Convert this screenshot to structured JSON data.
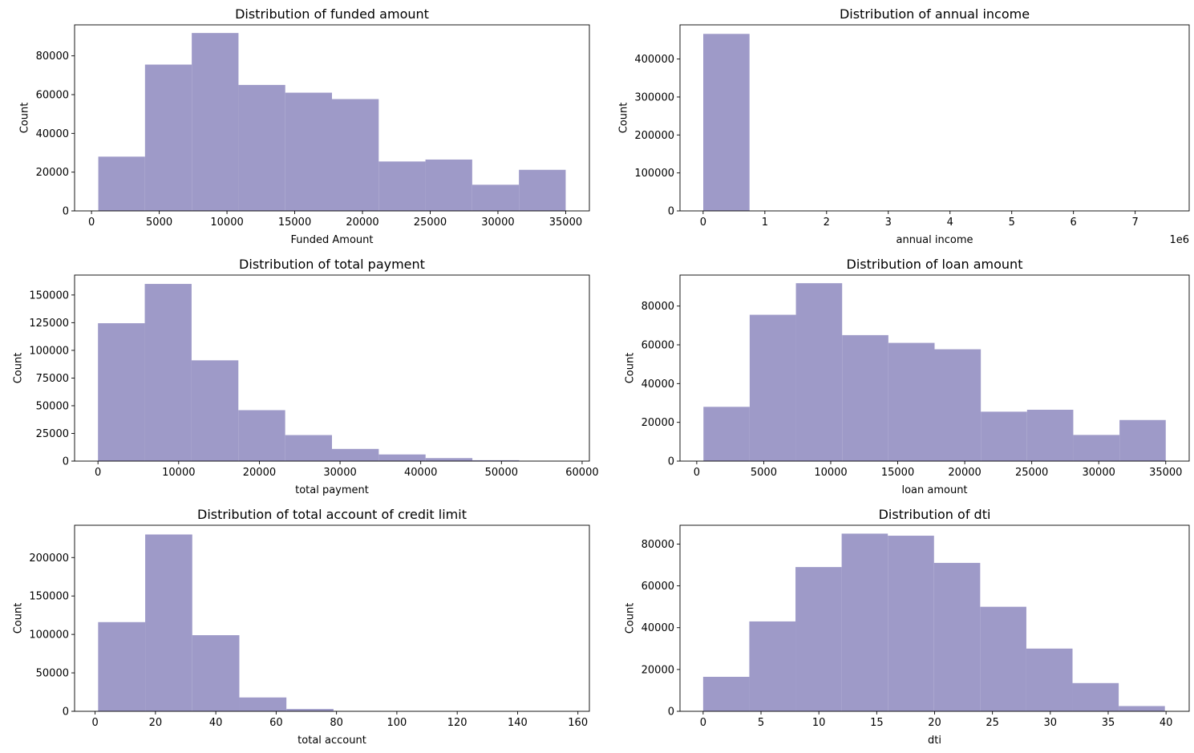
{
  "figure": {
    "background": "#ffffff",
    "bar_color": "#9e9ac8"
  },
  "chart_data": [
    {
      "type": "histogram",
      "title": "Distribution of funded amount",
      "xlabel": "Funded Amount",
      "ylabel": "Count",
      "xlim": [
        -1250,
        36750
      ],
      "ylim": [
        0,
        96000
      ],
      "xticks": [
        0,
        5000,
        10000,
        15000,
        20000,
        25000,
        30000,
        35000
      ],
      "xtick_labels": [
        "0",
        "5000",
        "10000",
        "15000",
        "20000",
        "25000",
        "30000",
        "35000"
      ],
      "yticks": [
        0,
        20000,
        40000,
        60000,
        80000
      ],
      "ytick_labels": [
        "0",
        "20000",
        "40000",
        "60000",
        "80000"
      ],
      "offset_text": "",
      "bin_edges": [
        500,
        3950,
        7400,
        10850,
        14300,
        17750,
        21200,
        24650,
        28100,
        31550,
        35000
      ],
      "counts": [
        28000,
        75500,
        91800,
        65000,
        61000,
        57700,
        25500,
        26500,
        13500,
        21200
      ]
    },
    {
      "type": "histogram",
      "title": "Distribution of annual income",
      "xlabel": "annual income",
      "ylabel": "Count",
      "xlim": [
        -375000,
        7875000
      ],
      "ylim": [
        0,
        490000
      ],
      "xticks": [
        0,
        1000000,
        2000000,
        3000000,
        4000000,
        5000000,
        6000000,
        7000000
      ],
      "xtick_labels": [
        "0",
        "1",
        "2",
        "3",
        "4",
        "5",
        "6",
        "7"
      ],
      "yticks": [
        0,
        100000,
        200000,
        300000,
        400000
      ],
      "ytick_labels": [
        "0",
        "100000",
        "200000",
        "300000",
        "400000"
      ],
      "offset_text": "1e6",
      "bin_edges": [
        1896,
        751706,
        1501516,
        2251327,
        3001137,
        3750948,
        4500758,
        5250569,
        6000379,
        6750190,
        7500000
      ],
      "counts": [
        466200,
        200,
        60,
        30,
        15,
        8,
        5,
        3,
        2,
        1
      ]
    },
    {
      "type": "histogram",
      "title": "Distribution of total payment",
      "xlabel": "total payment",
      "ylabel": "Count",
      "xlim": [
        -2900,
        60900
      ],
      "ylim": [
        0,
        168000
      ],
      "xticks": [
        0,
        10000,
        20000,
        30000,
        40000,
        50000,
        60000
      ],
      "xtick_labels": [
        "0",
        "10000",
        "20000",
        "30000",
        "40000",
        "50000",
        "60000"
      ],
      "yticks": [
        0,
        25000,
        50000,
        75000,
        100000,
        125000,
        150000
      ],
      "ytick_labels": [
        "0",
        "25000",
        "50000",
        "75000",
        "100000",
        "125000",
        "150000"
      ],
      "offset_text": "",
      "bin_edges": [
        0,
        5800,
        11600,
        17400,
        23200,
        29000,
        34800,
        40600,
        46400,
        52200,
        58000
      ],
      "counts": [
        124500,
        160000,
        91000,
        46000,
        23500,
        11000,
        6000,
        2700,
        800,
        200
      ]
    },
    {
      "type": "histogram",
      "title": "Distribution of loan amount",
      "xlabel": "loan amount",
      "ylabel": "Count",
      "xlim": [
        -1250,
        36750
      ],
      "ylim": [
        0,
        96000
      ],
      "xticks": [
        0,
        5000,
        10000,
        15000,
        20000,
        25000,
        30000,
        35000
      ],
      "xtick_labels": [
        "0",
        "5000",
        "10000",
        "15000",
        "20000",
        "25000",
        "30000",
        "35000"
      ],
      "yticks": [
        0,
        20000,
        40000,
        60000,
        80000
      ],
      "ytick_labels": [
        "0",
        "20000",
        "40000",
        "60000",
        "80000"
      ],
      "offset_text": "",
      "bin_edges": [
        500,
        3950,
        7400,
        10850,
        14300,
        17750,
        21200,
        24650,
        28100,
        31550,
        35000
      ],
      "counts": [
        28000,
        75500,
        91800,
        65000,
        61000,
        57700,
        25500,
        26500,
        13500,
        21200
      ]
    },
    {
      "type": "histogram",
      "title": "Distribution of total account of credit limit",
      "xlabel": "total account",
      "ylabel": "Count",
      "xlim": [
        -6.8,
        163.8
      ],
      "ylim": [
        0,
        242000
      ],
      "xticks": [
        0,
        20,
        40,
        60,
        80,
        100,
        120,
        140,
        160
      ],
      "xtick_labels": [
        "0",
        "20",
        "40",
        "60",
        "80",
        "100",
        "120",
        "140",
        "160"
      ],
      "yticks": [
        0,
        50000,
        100000,
        150000,
        200000
      ],
      "ytick_labels": [
        "0",
        "50000",
        "100000",
        "150000",
        "200000"
      ],
      "offset_text": "",
      "bin_edges": [
        1,
        16.6,
        32.2,
        47.8,
        63.4,
        79,
        94.6,
        110.2,
        125.8,
        141.4,
        157
      ],
      "counts": [
        116000,
        230000,
        99000,
        18000,
        3000,
        300,
        60,
        15,
        5,
        1
      ]
    },
    {
      "type": "histogram",
      "title": "Distribution of dti",
      "xlabel": "dti",
      "ylabel": "Count",
      "xlim": [
        -2,
        42
      ],
      "ylim": [
        0,
        89000
      ],
      "xticks": [
        0,
        5,
        10,
        15,
        20,
        25,
        30,
        35,
        40
      ],
      "xtick_labels": [
        "0",
        "5",
        "10",
        "15",
        "20",
        "25",
        "30",
        "35",
        "40"
      ],
      "yticks": [
        0,
        20000,
        40000,
        60000,
        80000
      ],
      "ytick_labels": [
        "0",
        "20000",
        "40000",
        "60000",
        "80000"
      ],
      "offset_text": "",
      "bin_edges": [
        0,
        3.99,
        7.98,
        11.97,
        15.96,
        19.95,
        23.94,
        27.93,
        31.92,
        35.91,
        39.9
      ],
      "counts": [
        16500,
        43000,
        69000,
        85000,
        84000,
        71000,
        50000,
        30000,
        13500,
        2500
      ]
    }
  ]
}
